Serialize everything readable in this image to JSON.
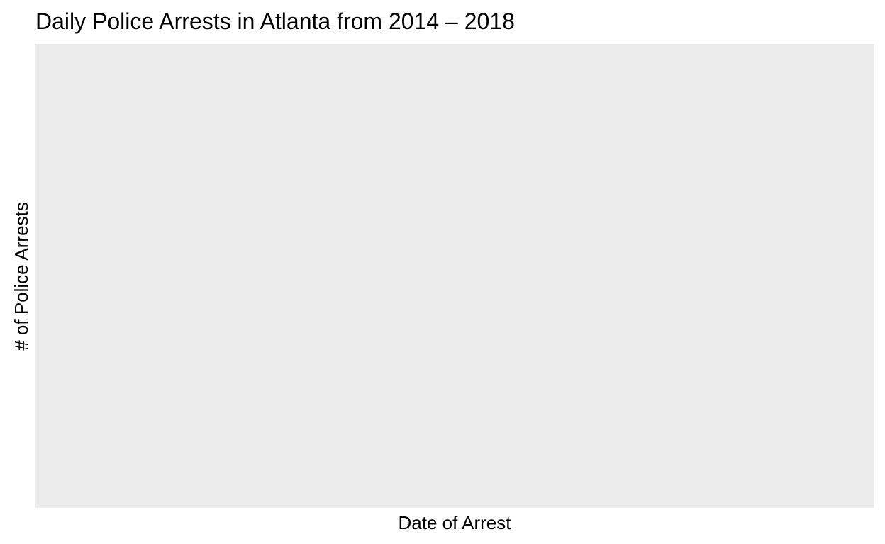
{
  "chart_data": {
    "type": "line",
    "title": "Daily Police Arrests in Atlanta from 2014 – 2018",
    "xlabel": "Date of Arrest",
    "ylabel": "# of Police Arrests",
    "series": [],
    "grid": false,
    "panel_color": "#ebebeb"
  }
}
